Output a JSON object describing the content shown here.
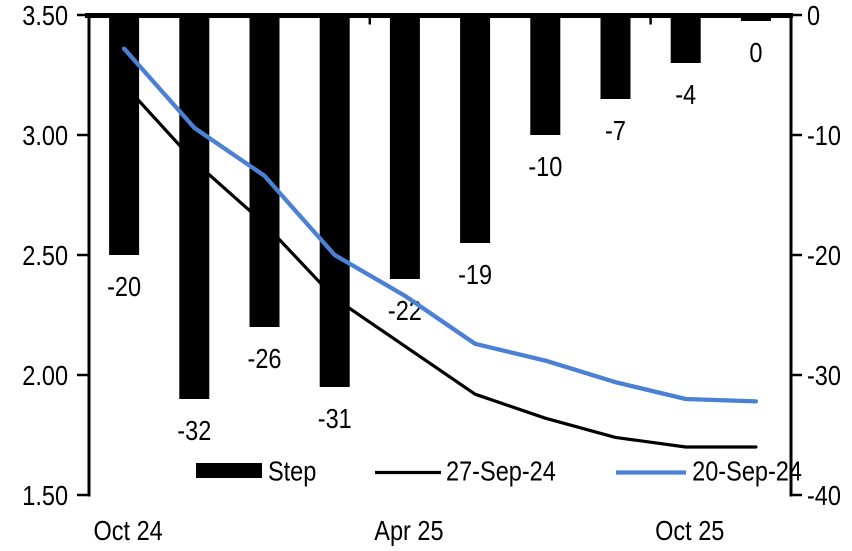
{
  "chart_data": {
    "type": "bar",
    "combo": "bar + two lines, dual axis",
    "n_categories": 10,
    "x_tick_labels": [
      {
        "label": "Oct 24",
        "category_index": 0
      },
      {
        "label": "Apr 25",
        "category_index": 4
      },
      {
        "label": "Oct 25",
        "category_index": 8
      }
    ],
    "left_axis": {
      "tick_labels": [
        "3.50",
        "3.00",
        "2.50",
        "2.00",
        "1.50"
      ],
      "max": 3.5,
      "min": 1.5
    },
    "right_axis": {
      "tick_labels": [
        "0",
        "-10",
        "-20",
        "-30",
        "-40"
      ],
      "max": 0,
      "min": -40
    },
    "series": [
      {
        "name": "Step",
        "type": "bar",
        "axis": "right",
        "color": "#000000",
        "values": [
          -20,
          -32,
          -26,
          -31,
          -22,
          -19,
          -10,
          -7,
          -4,
          0
        ],
        "data_labels": [
          "-20",
          "-32",
          "-26",
          "-31",
          "-22",
          "-19",
          "-10",
          "-7",
          "-4",
          "0"
        ]
      },
      {
        "name": "27-Sep-24",
        "type": "line",
        "axis": "left",
        "color": "#000000",
        "values": [
          3.21,
          2.89,
          2.63,
          2.32,
          2.12,
          1.92,
          1.82,
          1.74,
          1.7,
          1.7
        ]
      },
      {
        "name": "20-Sep-24",
        "type": "line",
        "axis": "left",
        "color": "#4B81D4",
        "values": [
          3.36,
          3.03,
          2.83,
          2.5,
          2.33,
          2.13,
          2.06,
          1.97,
          1.9,
          1.89
        ]
      }
    ],
    "legend": {
      "position": "bottom-inside",
      "entries": [
        "Step",
        "27-Sep-24",
        "20-Sep-24"
      ]
    },
    "grid": false,
    "background": "#FFFFFF"
  },
  "colors": {
    "accent_blue": "#4B81D4",
    "bar_black": "#000000",
    "background": "#FFFFFF"
  }
}
